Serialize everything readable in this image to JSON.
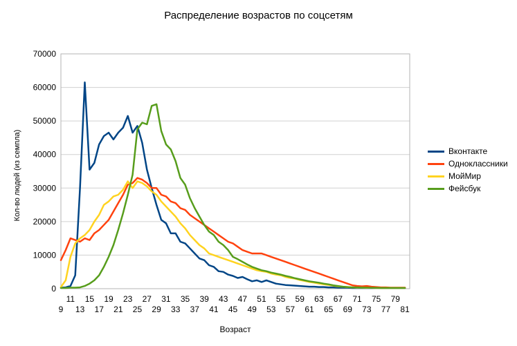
{
  "chart_data": {
    "type": "line",
    "title": "Распределение возрастов по соцсетям",
    "xlabel": "Возраст",
    "ylabel": "Кол-во людей (из семпла)",
    "ylim": [
      0,
      70000
    ],
    "ytick_step": 10000,
    "grid": "horizontal",
    "grid_color": "#d0d0d0",
    "plot_border_color": "#b3b3b3",
    "legend_position": "right",
    "xticks": [
      9,
      11,
      13,
      15,
      17,
      19,
      21,
      23,
      25,
      27,
      29,
      31,
      33,
      35,
      37,
      39,
      41,
      43,
      45,
      47,
      49,
      51,
      53,
      55,
      57,
      59,
      61,
      63,
      65,
      67,
      69,
      71,
      73,
      75,
      77,
      79,
      81
    ],
    "x": [
      9,
      10,
      11,
      12,
      13,
      14,
      15,
      16,
      17,
      18,
      19,
      20,
      21,
      22,
      23,
      24,
      25,
      26,
      27,
      28,
      29,
      30,
      31,
      32,
      33,
      34,
      35,
      36,
      37,
      38,
      39,
      40,
      41,
      42,
      43,
      44,
      45,
      46,
      47,
      48,
      49,
      50,
      51,
      52,
      53,
      54,
      55,
      56,
      57,
      58,
      59,
      60,
      61,
      62,
      63,
      64,
      65,
      66,
      67,
      68,
      69,
      70,
      71,
      72,
      73,
      74,
      75,
      76,
      77,
      78,
      79,
      80,
      81
    ],
    "series": [
      {
        "name": "Вконтакте",
        "color": "#004586",
        "values": [
          300,
          400,
          800,
          4000,
          30000,
          61500,
          35500,
          37500,
          43000,
          45500,
          46500,
          44500,
          46500,
          48000,
          51500,
          46500,
          48500,
          43500,
          35500,
          30000,
          25000,
          20500,
          19500,
          16500,
          16500,
          14000,
          13500,
          12000,
          10500,
          9000,
          8500,
          7000,
          6500,
          5200,
          5000,
          4200,
          3800,
          3200,
          3500,
          2800,
          2200,
          2500,
          2000,
          2500,
          2000,
          1500,
          1300,
          1100,
          1000,
          900,
          800,
          700,
          600,
          600,
          500,
          500,
          400,
          400,
          300,
          300,
          300,
          200,
          200,
          200,
          200,
          200,
          200,
          200,
          200,
          200,
          200,
          200,
          200
        ]
      },
      {
        "name": "Одноклассники",
        "color": "#FF420E",
        "values": [
          8500,
          11500,
          15000,
          14500,
          14000,
          15000,
          14500,
          16500,
          17500,
          19000,
          20500,
          23000,
          25500,
          28000,
          31000,
          31500,
          33000,
          32500,
          31500,
          30000,
          30000,
          28000,
          27500,
          26000,
          25500,
          24000,
          23500,
          22000,
          21000,
          20000,
          19000,
          18000,
          17000,
          16000,
          15000,
          14000,
          13500,
          12500,
          11500,
          11000,
          10500,
          10500,
          10500,
          10000,
          9500,
          9000,
          8500,
          8000,
          7500,
          7000,
          6500,
          6000,
          5500,
          5000,
          4500,
          4000,
          3500,
          3000,
          2500,
          2000,
          1500,
          1000,
          800,
          700,
          800,
          600,
          500,
          400,
          400,
          300,
          300,
          300,
          300
        ]
      },
      {
        "name": "МойМир",
        "color": "#FFD320",
        "values": [
          500,
          2500,
          9500,
          13500,
          15000,
          16000,
          17500,
          20000,
          22000,
          25000,
          26000,
          27500,
          28000,
          29500,
          32000,
          30000,
          32000,
          31500,
          30500,
          29000,
          28000,
          26000,
          24500,
          23000,
          21500,
          19500,
          18000,
          16000,
          14500,
          13000,
          12000,
          10500,
          10000,
          9500,
          9000,
          8500,
          8000,
          7500,
          7000,
          6500,
          6000,
          5500,
          5200,
          5000,
          4500,
          4200,
          4000,
          3500,
          3200,
          3000,
          2600,
          2300,
          2000,
          1800,
          1500,
          1300,
          1100,
          900,
          700,
          600,
          500,
          400,
          300,
          300,
          250,
          250,
          200,
          200,
          200,
          200,
          200,
          200,
          200
        ]
      },
      {
        "name": "Фейсбук",
        "color": "#579D1C",
        "values": [
          200,
          200,
          300,
          300,
          400,
          800,
          1500,
          2500,
          4000,
          6500,
          9500,
          13000,
          17500,
          22500,
          28000,
          34000,
          47500,
          49500,
          49000,
          54500,
          55000,
          47000,
          43000,
          41500,
          38000,
          33000,
          31000,
          27000,
          24000,
          21500,
          19000,
          17000,
          16000,
          14000,
          13000,
          11500,
          9500,
          8800,
          8000,
          7200,
          6500,
          6000,
          5500,
          5200,
          4800,
          4500,
          4200,
          3800,
          3500,
          3100,
          2800,
          2500,
          2200,
          2000,
          1800,
          1500,
          1300,
          1000,
          800,
          600,
          500,
          400,
          400,
          300,
          300,
          250,
          250,
          200,
          200,
          200,
          200,
          200,
          200
        ]
      }
    ]
  }
}
